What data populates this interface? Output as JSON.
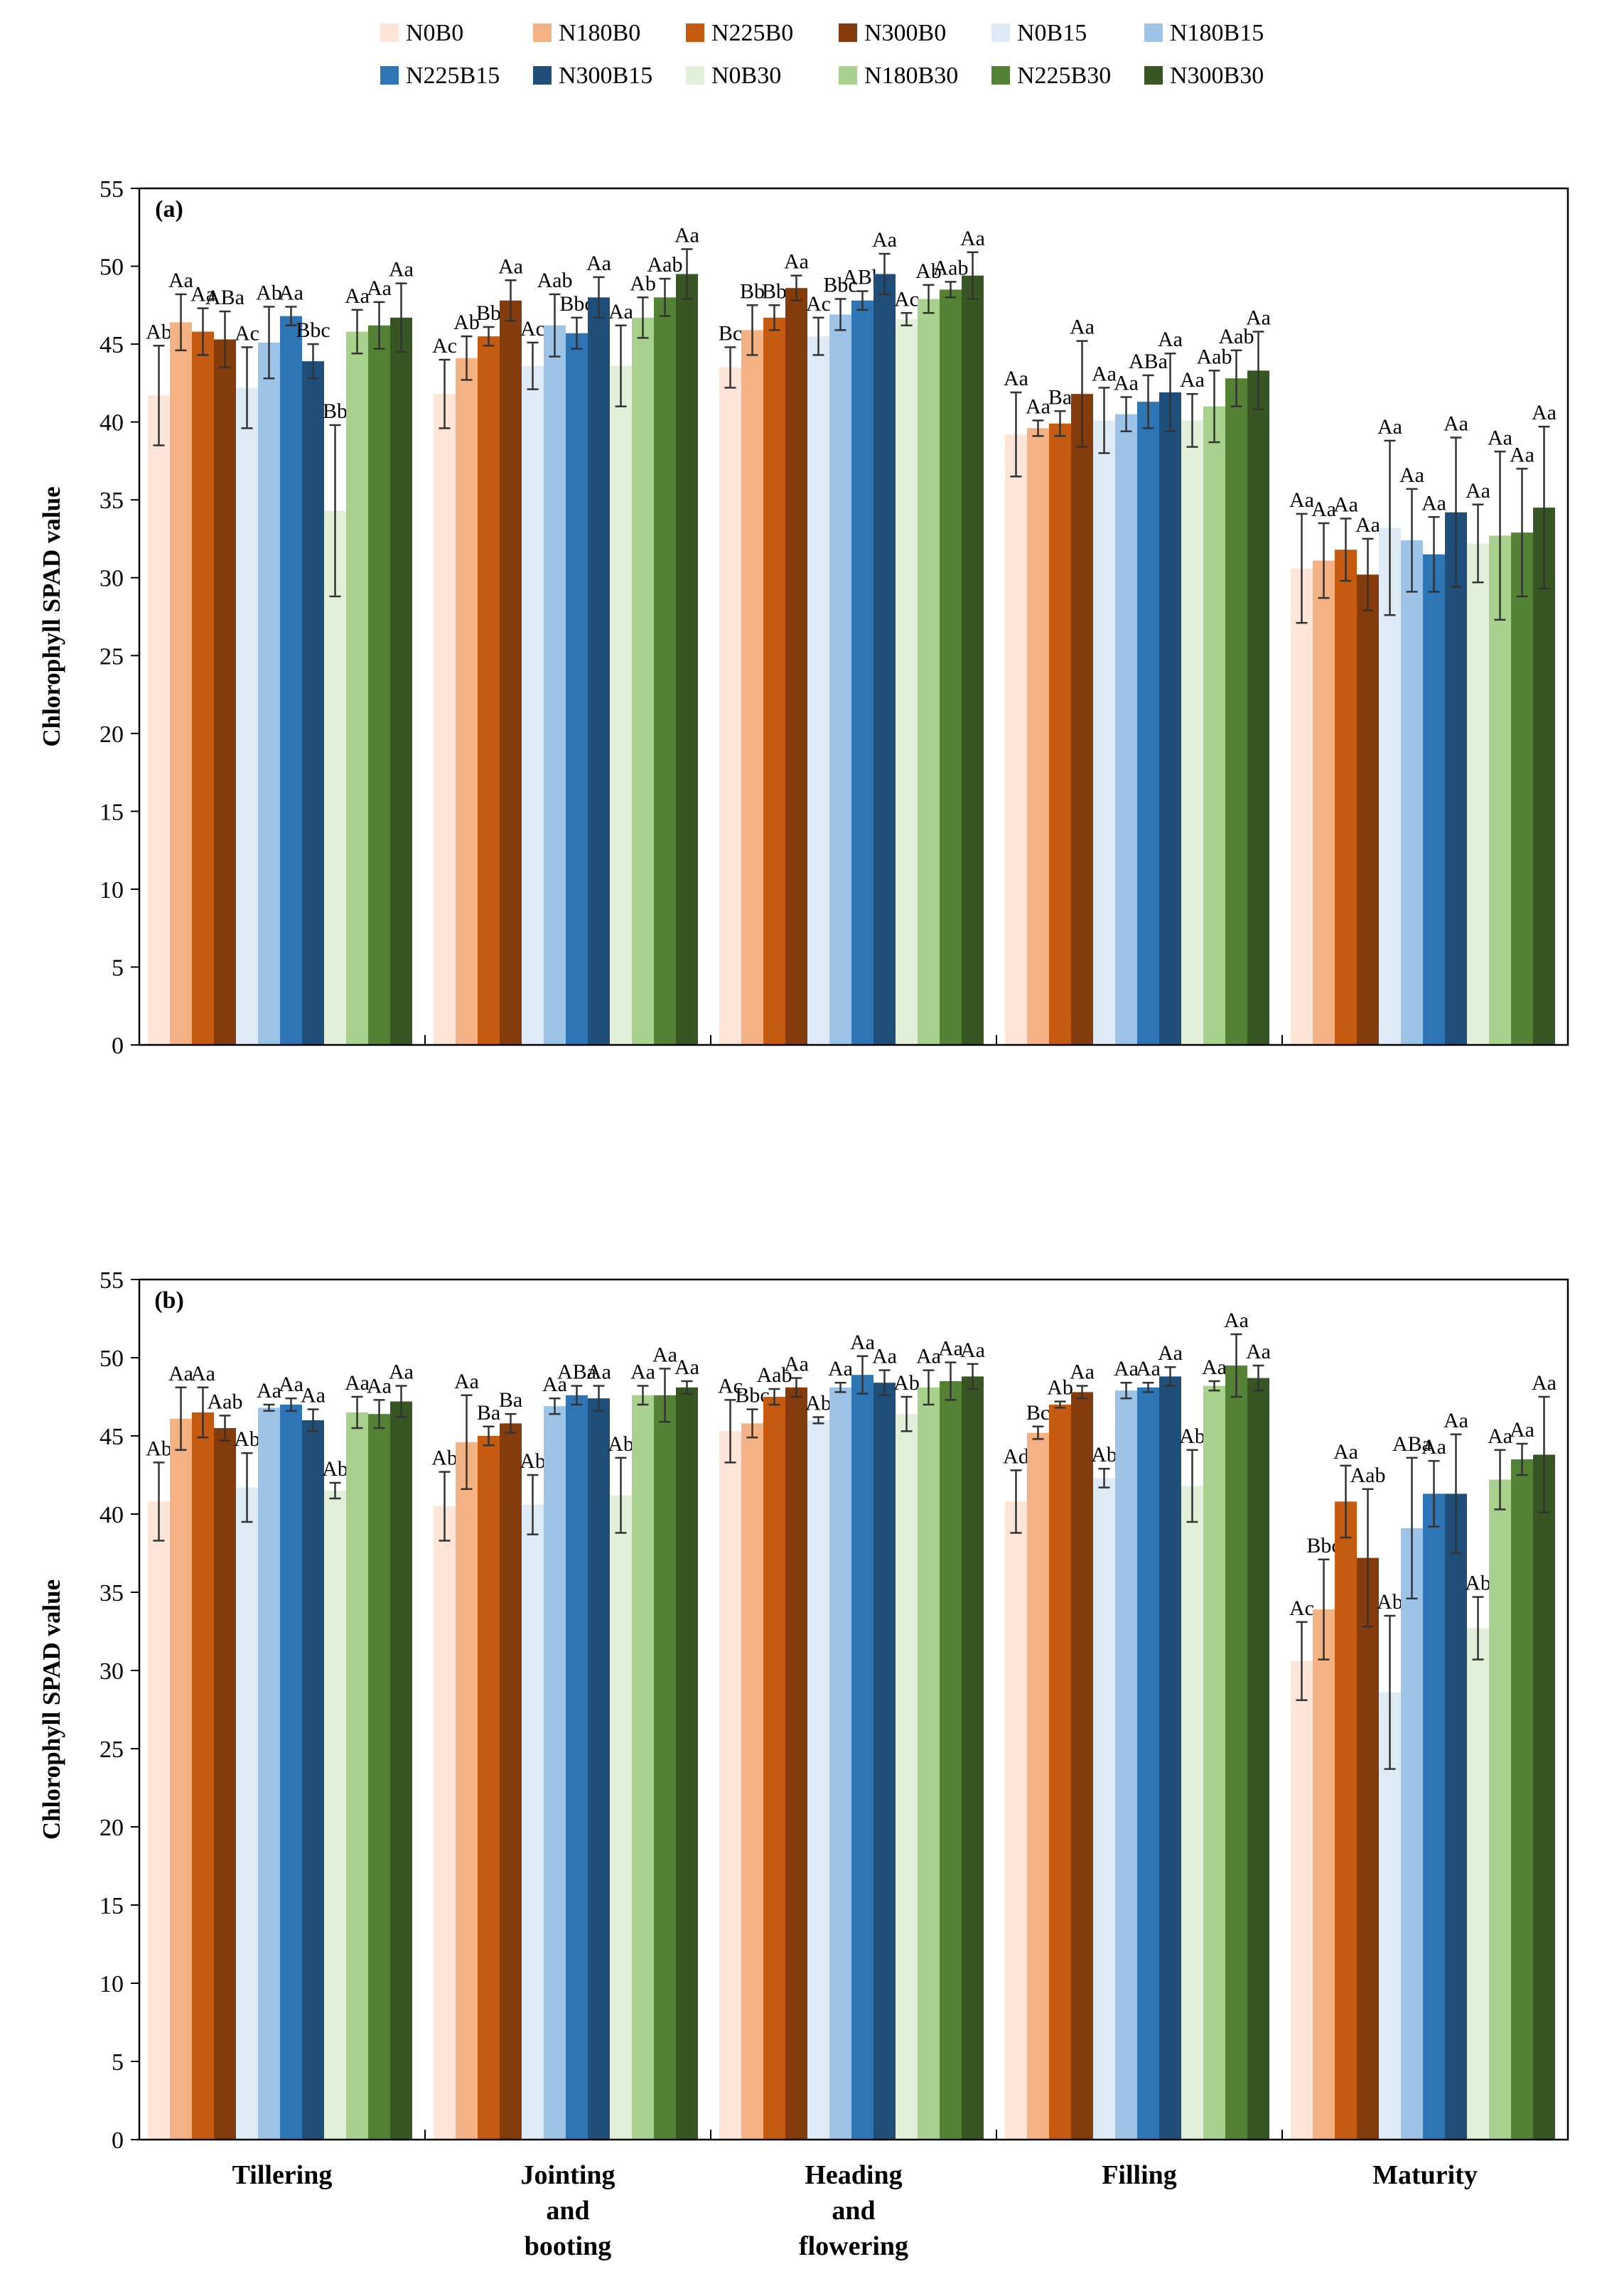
{
  "legend": {
    "entries": [
      "N0B0",
      "N180B0",
      "N225B0",
      "N300B0",
      "N0B15",
      "N180B15",
      "N225B15",
      "N300B15",
      "N0B30",
      "N180B30",
      "N225B30",
      "N300B30"
    ],
    "colors": [
      "#FCE4D6",
      "#F4B183",
      "#C55A11",
      "#843C0C",
      "#DEEBF7",
      "#9DC3E6",
      "#2E75B6",
      "#1F4E79",
      "#E2F0D9",
      "#A9D18E",
      "#548235",
      "#375623"
    ]
  },
  "chart_data": [
    {
      "type": "bar",
      "panel_label": "(a)",
      "title": "",
      "xlabel": "",
      "ylabel": "Chlorophyll SPAD value",
      "ylim": [
        0,
        55
      ],
      "yticks": [
        0,
        5,
        10,
        15,
        20,
        25,
        30,
        35,
        40,
        45,
        50,
        55
      ],
      "grid": false,
      "legend_position": "top",
      "categories": [
        "Tillering",
        "Jointing and booting",
        "Heading and flowering",
        "Filling",
        "Maturity"
      ],
      "series": [
        {
          "name": "N0B0",
          "values": [
            41.7,
            41.8,
            43.5,
            39.2,
            30.6
          ],
          "errors": [
            3.2,
            2.2,
            1.3,
            2.7,
            3.5
          ],
          "labels": [
            "Ab",
            "Ac",
            "Bc",
            "Aa",
            "Aa"
          ]
        },
        {
          "name": "N180B0",
          "values": [
            46.4,
            44.1,
            45.9,
            39.6,
            31.1
          ],
          "errors": [
            1.8,
            1.4,
            1.6,
            0.5,
            2.4
          ],
          "labels": [
            "Aa",
            "Ab",
            "Bb",
            "Aa",
            "Aa"
          ]
        },
        {
          "name": "N225B0",
          "values": [
            45.8,
            45.5,
            46.7,
            39.9,
            31.8
          ],
          "errors": [
            1.5,
            0.6,
            0.8,
            0.8,
            2.0
          ],
          "labels": [
            "Aa",
            "Bb",
            "Bb",
            "Ba",
            "Aa"
          ]
        },
        {
          "name": "N300B0",
          "values": [
            45.3,
            47.8,
            48.6,
            41.8,
            30.2
          ],
          "errors": [
            1.8,
            1.3,
            0.8,
            3.4,
            2.3
          ],
          "labels": [
            "ABa",
            "Aa",
            "Aa",
            "Aa",
            "Aa"
          ]
        },
        {
          "name": "N0B15",
          "values": [
            42.2,
            43.6,
            45.5,
            40.1,
            33.2
          ],
          "errors": [
            2.6,
            1.5,
            1.2,
            2.1,
            5.6
          ],
          "labels": [
            "Ac",
            "Ac",
            "Ac",
            "Aa",
            "Aa"
          ]
        },
        {
          "name": "N180B15",
          "values": [
            45.1,
            46.2,
            46.9,
            40.5,
            32.4
          ],
          "errors": [
            2.3,
            2.0,
            1.0,
            1.1,
            3.3
          ],
          "labels": [
            "Ab",
            "Aab",
            "Bbc",
            "Aa",
            "Aa"
          ]
        },
        {
          "name": "N225B15",
          "values": [
            46.8,
            45.7,
            47.8,
            41.3,
            31.5
          ],
          "errors": [
            0.6,
            1.0,
            0.6,
            1.7,
            2.4
          ],
          "labels": [
            "Aa",
            "Bbc",
            "ABb",
            "ABa",
            "Aa"
          ]
        },
        {
          "name": "N300B15",
          "values": [
            43.9,
            48.0,
            49.5,
            41.9,
            34.2
          ],
          "errors": [
            1.1,
            1.3,
            1.3,
            2.5,
            4.8
          ],
          "labels": [
            "Bbc",
            "Aa",
            "Aa",
            "Aa",
            "Aa"
          ]
        },
        {
          "name": "N0B30",
          "values": [
            34.3,
            43.6,
            46.6,
            40.1,
            32.2
          ],
          "errors": [
            5.5,
            2.6,
            0.4,
            1.7,
            2.5
          ],
          "labels": [
            "Bb",
            "Aa",
            "Ac",
            "Aa",
            "Aa"
          ]
        },
        {
          "name": "N180B30",
          "values": [
            45.8,
            46.7,
            47.9,
            41.0,
            32.7
          ],
          "errors": [
            1.4,
            1.3,
            0.9,
            2.3,
            5.4
          ],
          "labels": [
            "Aa",
            "Ab",
            "Ab",
            "Aab",
            "Aa"
          ]
        },
        {
          "name": "N225B30",
          "values": [
            46.2,
            48.0,
            48.5,
            42.8,
            32.9
          ],
          "errors": [
            1.5,
            1.2,
            0.5,
            1.8,
            4.1
          ],
          "labels": [
            "Aa",
            "Aab",
            "Aab",
            "Aab",
            "Aa"
          ]
        },
        {
          "name": "N300B30",
          "values": [
            46.7,
            49.5,
            49.4,
            43.3,
            34.5
          ],
          "errors": [
            2.2,
            1.6,
            1.5,
            2.5,
            5.2
          ],
          "labels": [
            "Aa",
            "Aa",
            "Aa",
            "Aa",
            "Aa"
          ]
        }
      ]
    },
    {
      "type": "bar",
      "panel_label": "(b)",
      "title": "",
      "xlabel": "",
      "ylabel": "Chlorophyll SPAD value",
      "ylim": [
        0,
        55
      ],
      "yticks": [
        0,
        5,
        10,
        15,
        20,
        25,
        30,
        35,
        40,
        45,
        50,
        55
      ],
      "grid": false,
      "legend_position": "top",
      "categories": [
        "Tillering",
        "Jointing and booting",
        "Heading and flowering",
        "Filling",
        "Maturity"
      ],
      "series": [
        {
          "name": "N0B0",
          "values": [
            40.8,
            40.5,
            45.3,
            40.8,
            30.6
          ],
          "errors": [
            2.5,
            2.2,
            2.0,
            2.0,
            2.5
          ],
          "labels": [
            "Ab",
            "Ab",
            "Ac",
            "Ad",
            "Ac"
          ]
        },
        {
          "name": "N180B0",
          "values": [
            46.1,
            44.6,
            45.8,
            45.2,
            33.9
          ],
          "errors": [
            2.0,
            3.0,
            0.9,
            0.4,
            3.2
          ],
          "labels": [
            "Aa",
            "Aa",
            "Bbc",
            "Bc",
            "Bbc"
          ]
        },
        {
          "name": "N225B0",
          "values": [
            46.5,
            45.0,
            47.5,
            47.0,
            40.8
          ],
          "errors": [
            1.6,
            0.6,
            0.5,
            0.2,
            2.3
          ],
          "labels": [
            "Aa",
            "Ba",
            "Aab",
            "Ab",
            "Aa"
          ]
        },
        {
          "name": "N300B0",
          "values": [
            45.5,
            45.8,
            48.1,
            47.8,
            37.2
          ],
          "errors": [
            0.8,
            0.6,
            0.6,
            0.4,
            4.4
          ],
          "labels": [
            "Aab",
            "Ba",
            "Aa",
            "Aa",
            "Aab"
          ]
        },
        {
          "name": "N0B15",
          "values": [
            41.7,
            40.6,
            46.0,
            42.3,
            28.6
          ],
          "errors": [
            2.2,
            1.9,
            0.2,
            0.6,
            4.9
          ],
          "labels": [
            "Ab",
            "Ab",
            "Ab",
            "Ab",
            "Ab"
          ]
        },
        {
          "name": "N180B15",
          "values": [
            46.8,
            46.9,
            48.1,
            47.9,
            39.1
          ],
          "errors": [
            0.2,
            0.5,
            0.3,
            0.5,
            4.5
          ],
          "labels": [
            "Aa",
            "Aa",
            "Aa",
            "Aa",
            "ABa"
          ]
        },
        {
          "name": "N225B15",
          "values": [
            47.0,
            47.6,
            48.9,
            48.1,
            41.3
          ],
          "errors": [
            0.4,
            0.6,
            1.2,
            0.3,
            2.1
          ],
          "labels": [
            "Aa",
            "ABa",
            "Aa",
            "Aa",
            "Aa"
          ]
        },
        {
          "name": "N300B15",
          "values": [
            46.0,
            47.4,
            48.4,
            48.8,
            41.3
          ],
          "errors": [
            0.7,
            0.8,
            0.8,
            0.6,
            3.8
          ],
          "labels": [
            "Aa",
            "Aa",
            "Aa",
            "Aa",
            "Aa"
          ]
        },
        {
          "name": "N0B30",
          "values": [
            41.5,
            41.2,
            46.4,
            41.8,
            32.7
          ],
          "errors": [
            0.5,
            2.4,
            1.1,
            2.3,
            2.0
          ],
          "labels": [
            "Ab",
            "Ab",
            "Ab",
            "Ab",
            "Ab"
          ]
        },
        {
          "name": "N180B30",
          "values": [
            46.5,
            47.6,
            48.1,
            48.2,
            42.2
          ],
          "errors": [
            1.0,
            0.6,
            1.1,
            0.3,
            1.9
          ],
          "labels": [
            "Aa",
            "Aa",
            "Aa",
            "Aa",
            "Aa"
          ]
        },
        {
          "name": "N225B30",
          "values": [
            46.4,
            47.6,
            48.5,
            49.5,
            43.5
          ],
          "errors": [
            0.9,
            1.7,
            1.2,
            2.0,
            1.0
          ],
          "labels": [
            "Aa",
            "Aa",
            "Aa",
            "Aa",
            "Aa"
          ]
        },
        {
          "name": "N300B30",
          "values": [
            47.2,
            48.1,
            48.8,
            48.7,
            43.8
          ],
          "errors": [
            1.0,
            0.4,
            0.8,
            0.8,
            3.7
          ],
          "labels": [
            "Aa",
            "Aa",
            "Aa",
            "Aa",
            "Aa"
          ]
        }
      ]
    }
  ]
}
